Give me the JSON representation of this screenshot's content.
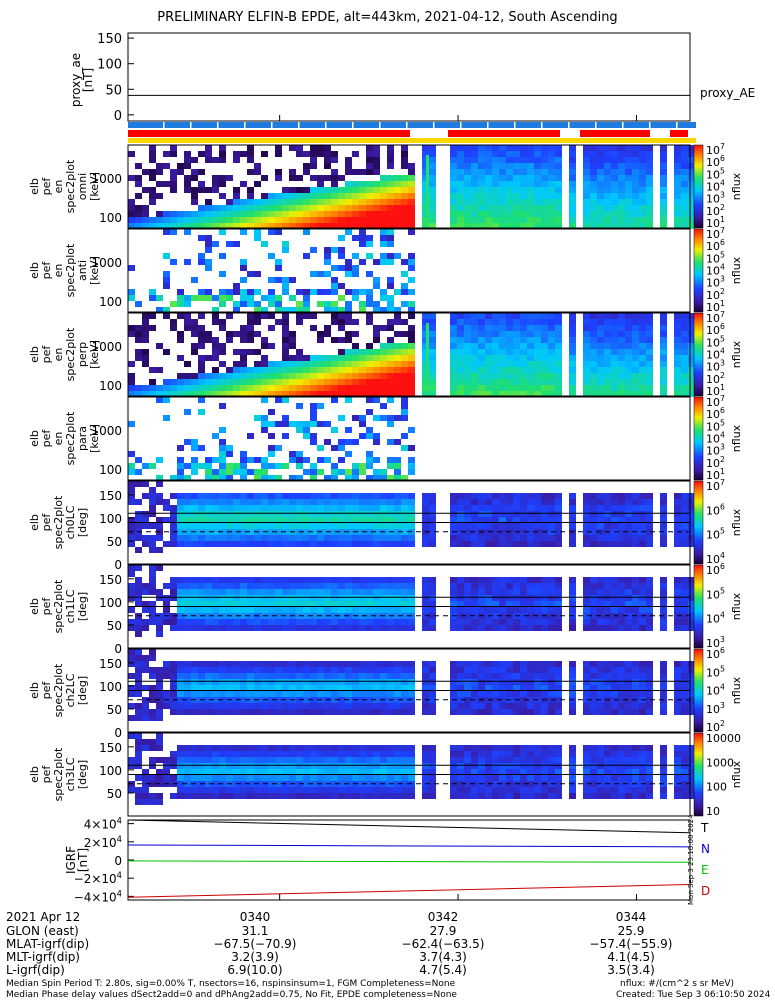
{
  "title": "PRELIMINARY ELFIN-B EPDE, alt=443km, 2021-04-12, South Ascending",
  "colors": {
    "red": "#ff0000",
    "blue": "#1e7be0",
    "yellow": "#ffd700",
    "green": "#00c000",
    "navy": "#0000cc",
    "darkred": "#cc0000",
    "spin": "#1e7be0"
  },
  "x_tick_labels": [
    "0340",
    "0342",
    "0344"
  ],
  "x_tick_minutes": [
    0,
    2,
    4
  ],
  "x_range_minutes": [
    -1.7,
    4.6
  ],
  "proxy_panel": {
    "ylabel": "proxy_ae\n[nT]",
    "yticks": [
      "150",
      "100",
      "50",
      "0"
    ],
    "ytick_values": [
      150,
      100,
      50,
      0
    ],
    "ylim": [
      -12,
      160
    ],
    "series_label": "proxy_AE",
    "level": 38
  },
  "spectro_panels": [
    {
      "id": "omni",
      "ylabel": "elb\npef\nen\nspec2plot\nomni\n[keV]",
      "type": "energy",
      "yticks": [
        "1000",
        "100"
      ],
      "cbar": [
        "10^7",
        "10^6",
        "10^5",
        "10^4",
        "10^3",
        "10^2",
        "10^1"
      ],
      "zlabel": "nflux",
      "fill": "high"
    },
    {
      "id": "anti",
      "ylabel": "elb\npef\nen\nspec2plot\nanti\n[keV]",
      "type": "energy",
      "yticks": [
        "1000",
        "100"
      ],
      "cbar": [
        "10^7",
        "10^6",
        "10^5",
        "10^4",
        "10^3",
        "10^2",
        "10^1"
      ],
      "zlabel": "nflux",
      "fill": "low"
    },
    {
      "id": "perp",
      "ylabel": "elb\npef\nen\nspec2plot\nperp\n[keV]",
      "type": "energy",
      "yticks": [
        "1000",
        "100"
      ],
      "cbar": [
        "10^7",
        "10^6",
        "10^5",
        "10^4",
        "10^3",
        "10^2",
        "10^1"
      ],
      "zlabel": "nflux",
      "fill": "high"
    },
    {
      "id": "para",
      "ylabel": "elb\npef\nen\nspec2plot\npara\n[keV]",
      "type": "energy",
      "yticks": [
        "1000",
        "100"
      ],
      "cbar": [
        "10^7",
        "10^6",
        "10^5",
        "10^4",
        "10^3",
        "10^2",
        "10^1"
      ],
      "zlabel": "nflux",
      "fill": "low"
    },
    {
      "id": "ch0LC",
      "ylabel": "elb\npef\nspec2plot\nch0LC\n[deg]",
      "type": "pitch",
      "yticks": [
        "150",
        "100",
        "50",
        "0"
      ],
      "cbar": [
        "10^7",
        "10^6",
        "10^5",
        "10^4"
      ],
      "zlabel": "nflux",
      "fill": "pa"
    },
    {
      "id": "ch1LC",
      "ylabel": "elb\npef\nspec2plot\nch1LC\n[deg]",
      "type": "pitch",
      "yticks": [
        "150",
        "100",
        "50",
        "0"
      ],
      "cbar": [
        "10^6",
        "10^5",
        "10^4",
        "10^3"
      ],
      "zlabel": "nflux",
      "fill": "pa"
    },
    {
      "id": "ch2LC",
      "ylabel": "elb\npef\nspec2plot\nch2LC\n[deg]",
      "type": "pitch",
      "yticks": [
        "150",
        "100",
        "50",
        "0"
      ],
      "cbar": [
        "10^6",
        "10^5",
        "10^4",
        "10^3",
        "10^2"
      ],
      "zlabel": "nflux",
      "fill": "pa"
    },
    {
      "id": "ch3LC",
      "ylabel": "elb\npef\nspec2plot\nch3LC\n[deg]",
      "type": "pitch",
      "yticks": [
        "150",
        "100",
        "50"
      ],
      "cbar": [
        "10000",
        "1000",
        "100",
        "10"
      ],
      "zlabel": "nflux",
      "fill": "pa"
    }
  ],
  "igrf_panel": {
    "ylabel": "IGRF\n[nT]",
    "yticks": [
      "4×10^4",
      "2×10^4",
      "0",
      "−2×10^4",
      "−4×10^4"
    ],
    "ytick_values": [
      40000,
      20000,
      0,
      -20000,
      -40000
    ],
    "ylim": [
      -44000,
      44000
    ],
    "series": [
      {
        "name": "T",
        "color": "#000000",
        "start": 44000,
        "end": 30000
      },
      {
        "name": "N",
        "color": "#0000cc",
        "start": 16500,
        "end": 14500
      },
      {
        "name": "E",
        "color": "#00c000",
        "start": -1000,
        "end": -2500
      },
      {
        "name": "D",
        "color": "#cc0000",
        "start": -41000,
        "end": -27000
      }
    ],
    "side_stamp": "Mon Sep  3 23:10:00 2024"
  },
  "chart_data": {
    "type": "heatmap",
    "title": "PRELIMINARY ELFIN-B EPDE, alt=443km, 2021-04-12, South Ascending",
    "x_tick_labels": [
      "0340",
      "0342",
      "0344"
    ],
    "series": [
      {
        "name": "proxy_AE",
        "values": [
          38
        ]
      },
      {
        "name": "T",
        "values": [
          44000,
          30000
        ]
      },
      {
        "name": "N",
        "values": [
          16500,
          14500
        ]
      },
      {
        "name": "E",
        "values": [
          -1000,
          -2500
        ]
      },
      {
        "name": "D",
        "values": [
          -41000,
          -27000
        ]
      }
    ],
    "xlabel": "",
    "ylabel": ""
  },
  "ephemeris": {
    "rows": [
      {
        "label": "2021 Apr 12",
        "values": [
          "0340",
          "0342",
          "0344"
        ]
      },
      {
        "label": "GLON (east)",
        "values": [
          "31.1",
          "27.9",
          "25.9"
        ]
      },
      {
        "label": "MLAT-igrf(dip)",
        "values": [
          "−67.5(−70.9)",
          "−62.4(−63.5)",
          "−57.4(−55.9)"
        ]
      },
      {
        "label": "MLT-igrf(dip)",
        "values": [
          "3.2(3.9)",
          "3.7(4.3)",
          "4.1(4.5)"
        ]
      },
      {
        "label": "L-igrf(dip)",
        "values": [
          "6.9(10.0)",
          "4.7(5.4)",
          "3.5(3.4)"
        ]
      }
    ]
  },
  "footer": {
    "left1": "Median Spin Period T: 2.80s, sig=0.00% T, nsectors=16, nspinsinsum=1, FGM Completeness=None",
    "left2": "Median Phase delay values dSect2add=0 and dPhAng2add=0.75, No Fit, EPDE completeness=None",
    "right1": "nflux: #/(cm^2 s sr MeV)",
    "right2": "Created: Tue Sep  3 06:10:50 2024"
  }
}
